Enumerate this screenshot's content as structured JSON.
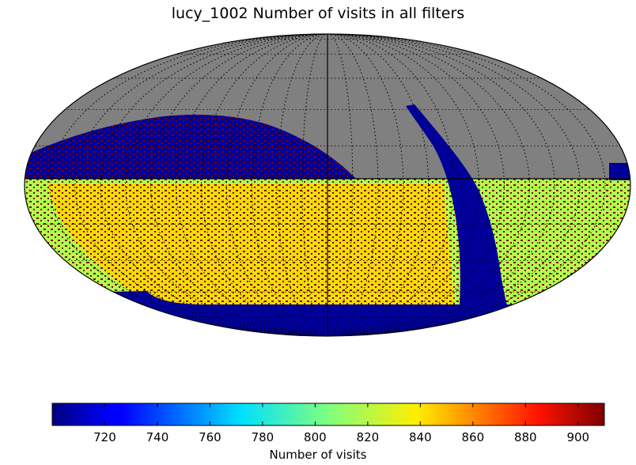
{
  "chart_data": {
    "type": "heatmap",
    "projection": "mollweide",
    "title": "lucy_1002 Number of visits in all filters",
    "colorbar": {
      "label": "Number of visits",
      "range": [
        700,
        910
      ],
      "ticks": [
        720,
        740,
        760,
        780,
        800,
        820,
        840,
        860,
        880,
        900
      ],
      "colormap": "jet",
      "orientation": "horizontal"
    },
    "no_data_color": "#808080",
    "grid": true,
    "regions": [
      {
        "name": "northern cap",
        "value": 705,
        "speckle_value": 900
      },
      {
        "name": "main survey band",
        "value": 815,
        "speckle_value": 900
      },
      {
        "name": "galactic plane strip",
        "value": 705
      },
      {
        "name": "southern border",
        "value": 705
      }
    ]
  }
}
